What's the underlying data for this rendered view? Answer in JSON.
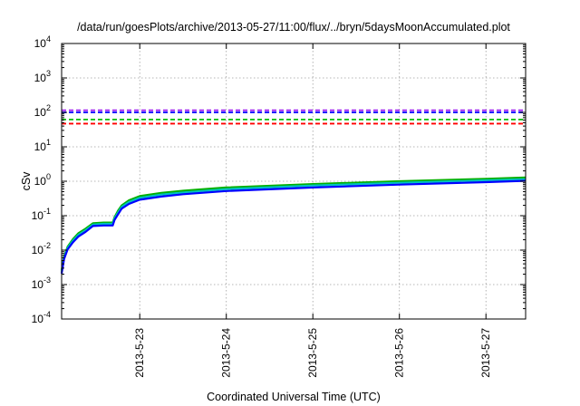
{
  "chart_data": {
    "type": "line",
    "title": "/data/run/goesPlots/archive/2013-05-27/11:00/flux/../bryn/5daysMoonAccumulated.plot",
    "xlabel": "Coordinated Universal Time (UTC)",
    "ylabel": "cSv",
    "y_scale": "log",
    "ylim": [
      0.0001,
      10000
    ],
    "xlim": [
      "2013-05-22 02:20",
      "2013-05-27 11:00"
    ],
    "grid": true,
    "y_ticks": [
      {
        "value": 0.0001,
        "base": "10",
        "exp": "-4"
      },
      {
        "value": 0.001,
        "base": "10",
        "exp": "-3"
      },
      {
        "value": 0.01,
        "base": "10",
        "exp": "-2"
      },
      {
        "value": 0.1,
        "base": "10",
        "exp": "-1"
      },
      {
        "value": 1,
        "base": "10",
        "exp": "0"
      },
      {
        "value": 10,
        "base": "10",
        "exp": "1"
      },
      {
        "value": 100,
        "base": "10",
        "exp": "2"
      },
      {
        "value": 1000,
        "base": "10",
        "exp": "3"
      },
      {
        "value": 10000,
        "base": "10",
        "exp": "4"
      }
    ],
    "x_ticks": [
      "2013-5-23",
      "2013-5-24",
      "2013-5-25",
      "2013-5-26",
      "2013-5-27"
    ],
    "x_tick_dates": [
      "2013-05-23 00:00",
      "2013-05-24 00:00",
      "2013-05-25 00:00",
      "2013-05-26 00:00",
      "2013-05-27 00:00"
    ],
    "thresholds": [
      {
        "color": "#a020f0",
        "value": 115
      },
      {
        "color": "#0000ff",
        "value": 100
      },
      {
        "color": "#00c000",
        "value": 62
      },
      {
        "color": "#ff0000",
        "value": 47
      }
    ],
    "series": [
      {
        "color": "#00b000",
        "x": [
          "2013-05-22 02:20",
          "2013-05-22 03:00",
          "2013-05-22 04:00",
          "2013-05-22 05:30",
          "2013-05-22 07:00",
          "2013-05-22 09:00",
          "2013-05-22 11:00",
          "2013-05-22 14:00",
          "2013-05-22 16:30",
          "2013-05-22 17:00",
          "2013-05-22 18:00",
          "2013-05-22 19:00",
          "2013-05-22 21:00",
          "2013-05-23 00:00",
          "2013-05-23 06:00",
          "2013-05-23 12:00",
          "2013-05-24 00:00",
          "2013-05-25 00:00",
          "2013-05-26 00:00",
          "2013-05-27 00:00",
          "2013-05-27 11:00"
        ],
        "y": [
          0.0026,
          0.0065,
          0.0125,
          0.021,
          0.031,
          0.042,
          0.06,
          0.063,
          0.063,
          0.09,
          0.14,
          0.2,
          0.28,
          0.37,
          0.46,
          0.53,
          0.66,
          0.83,
          1.0,
          1.18,
          1.28
        ]
      },
      {
        "color": "#00c0c0",
        "x": [
          "2013-05-22 02:20",
          "2013-05-22 03:00",
          "2013-05-22 04:00",
          "2013-05-22 05:30",
          "2013-05-22 07:00",
          "2013-05-22 09:00",
          "2013-05-22 11:00",
          "2013-05-22 14:00",
          "2013-05-22 16:30",
          "2013-05-22 17:00",
          "2013-05-22 18:00",
          "2013-05-22 19:00",
          "2013-05-22 21:00",
          "2013-05-23 00:00",
          "2013-05-23 06:00",
          "2013-05-23 12:00",
          "2013-05-24 00:00",
          "2013-05-25 00:00",
          "2013-05-26 00:00",
          "2013-05-27 00:00",
          "2013-05-27 11:00"
        ],
        "y": [
          0.0024,
          0.006,
          0.0115,
          0.019,
          0.028,
          0.038,
          0.055,
          0.058,
          0.058,
          0.083,
          0.125,
          0.18,
          0.25,
          0.33,
          0.41,
          0.47,
          0.59,
          0.75,
          0.9,
          1.06,
          1.15
        ]
      },
      {
        "color": "#0000ff",
        "x": [
          "2013-05-22 02:20",
          "2013-05-22 03:00",
          "2013-05-22 04:00",
          "2013-05-22 05:30",
          "2013-05-22 07:00",
          "2013-05-22 09:00",
          "2013-05-22 11:00",
          "2013-05-22 14:00",
          "2013-05-22 16:30",
          "2013-05-22 17:00",
          "2013-05-22 18:00",
          "2013-05-22 19:00",
          "2013-05-22 21:00",
          "2013-05-23 00:00",
          "2013-05-23 06:00",
          "2013-05-23 12:00",
          "2013-05-24 00:00",
          "2013-05-25 00:00",
          "2013-05-26 00:00",
          "2013-05-27 00:00",
          "2013-05-27 11:00"
        ],
        "y": [
          0.0021,
          0.0055,
          0.0105,
          0.017,
          0.025,
          0.034,
          0.05,
          0.052,
          0.052,
          0.075,
          0.11,
          0.16,
          0.22,
          0.29,
          0.36,
          0.42,
          0.52,
          0.66,
          0.8,
          0.94,
          1.03
        ]
      }
    ]
  }
}
